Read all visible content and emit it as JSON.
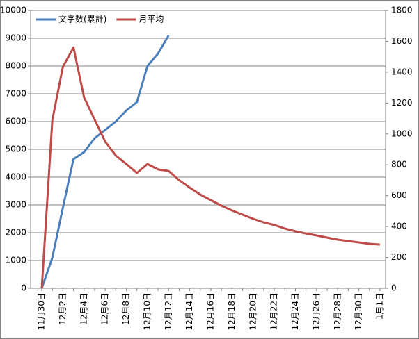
{
  "chart_data": {
    "type": "line",
    "categories": [
      "11月30日",
      null,
      "12月2日",
      null,
      "12月4日",
      null,
      "12月6日",
      null,
      "12月8日",
      null,
      "12月10日",
      null,
      "12月12日",
      null,
      "12月14日",
      null,
      "12月16日",
      null,
      "12月18日",
      null,
      "12月20日",
      null,
      "12月22日",
      null,
      "12月24日",
      null,
      "12月26日",
      null,
      "12月28日",
      null,
      "12月30日",
      null,
      "1月1日"
    ],
    "series": [
      {
        "name": "文字数(累計)",
        "color": "#4a7ebb",
        "axis": "y",
        "values": [
          0,
          1100,
          2900,
          4650,
          4900,
          5400,
          5700,
          6000,
          6400,
          6700,
          8000,
          8450,
          9100,
          null,
          null,
          null,
          null,
          null,
          null,
          null,
          null,
          null,
          null,
          null,
          null,
          null,
          null,
          null,
          null,
          null,
          null,
          null,
          null
        ]
      },
      {
        "name": "月平均",
        "color": "#be4b48",
        "axis": "y2",
        "values": [
          0,
          1090,
          1435,
          1560,
          1237,
          1093,
          950,
          860,
          805,
          747,
          805,
          770,
          760,
          700,
          652,
          607,
          571,
          535,
          504,
          477,
          450,
          427,
          410,
          387,
          369,
          355,
          342,
          328,
          315,
          306,
          297,
          288,
          283
        ]
      }
    ],
    "ylim": [
      0,
      10000
    ],
    "yticks": [
      0,
      1000,
      2000,
      3000,
      4000,
      5000,
      6000,
      7000,
      8000,
      9000,
      10000
    ],
    "y2lim": [
      0,
      1800
    ],
    "y2ticks": [
      0,
      200,
      400,
      600,
      800,
      1000,
      1200,
      1400,
      1600,
      1800
    ],
    "grid": true,
    "legend": "top-left"
  }
}
